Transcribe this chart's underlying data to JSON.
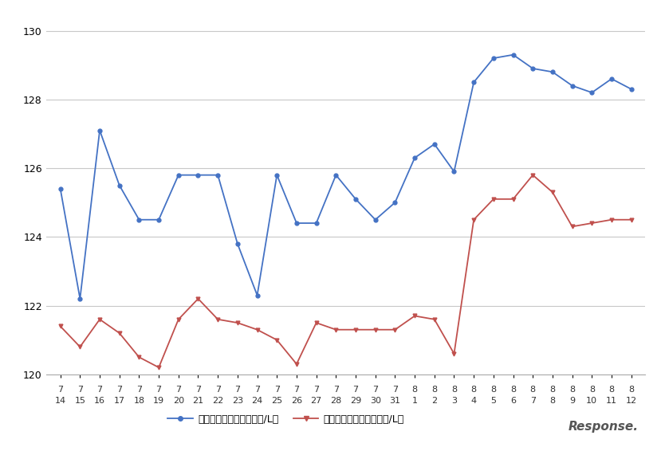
{
  "x_labels_top": [
    "7",
    "7",
    "7",
    "7",
    "7",
    "7",
    "7",
    "7",
    "7",
    "7",
    "7",
    "7",
    "7",
    "7",
    "7",
    "7",
    "7",
    "7",
    "8",
    "8",
    "8",
    "8",
    "8",
    "8",
    "8",
    "8",
    "8",
    "8",
    "8",
    "8"
  ],
  "x_labels_bot": [
    "14",
    "15",
    "16",
    "17",
    "18",
    "19",
    "20",
    "21",
    "22",
    "23",
    "24",
    "25",
    "26",
    "27",
    "28",
    "29",
    "30",
    "31",
    "1",
    "2",
    "3",
    "4",
    "5",
    "6",
    "7",
    "8",
    "9",
    "10",
    "11",
    "12"
  ],
  "blue_values": [
    125.4,
    122.2,
    127.1,
    125.5,
    124.5,
    124.5,
    125.8,
    125.8,
    125.8,
    123.8,
    122.3,
    125.8,
    124.4,
    124.4,
    125.8,
    125.1,
    124.5,
    125.0,
    126.3,
    126.7,
    125.9,
    128.5,
    129.2,
    129.3,
    128.9,
    128.8,
    128.4,
    128.2,
    128.6,
    128.3
  ],
  "red_values": [
    121.4,
    120.8,
    121.6,
    121.2,
    120.5,
    120.2,
    121.6,
    122.2,
    121.6,
    121.5,
    121.3,
    121.0,
    120.3,
    121.5,
    121.3,
    121.3,
    121.3,
    121.3,
    121.7,
    121.6,
    120.6,
    124.5,
    125.1,
    125.1,
    125.8,
    125.3,
    124.3,
    124.4,
    124.5,
    124.5
  ],
  "blue_color": "#4472C4",
  "red_color": "#C0504D",
  "blue_label": "レギュラー看板価格（円/L）",
  "red_label": "レギュラー実売価格（円/L）",
  "ylim_min": 120.0,
  "ylim_max": 130.5,
  "yticks": [
    120,
    122,
    124,
    126,
    128,
    130
  ],
  "background_color": "#ffffff",
  "grid_color": "#c8c8c8"
}
